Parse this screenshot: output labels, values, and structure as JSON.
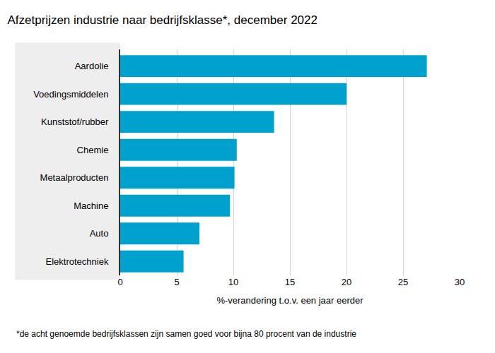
{
  "chart_data": {
    "type": "bar",
    "orientation": "horizontal",
    "title": "Afzetprijzen industrie naar bedrijfsklasse*, december 2022",
    "x_label": "%-verandering t.o.v. een jaar eerder",
    "annotations": [
      "*de acht genoemde bedrijfsklassen zijn samen goed voor bijna 80 procent van de industrie"
    ],
    "categories": [
      "Aardolie",
      "Voedingsmiddelen",
      "Kunststof/rubber",
      "Chemie",
      "Metaalproducten",
      "Machine",
      "Auto",
      "Elektrotechniek"
    ],
    "values": [
      27.1,
      20.0,
      13.6,
      10.3,
      10.1,
      9.7,
      7.0,
      5.6
    ],
    "color": "#00a1cd",
    "xlim": [
      0,
      30
    ],
    "xticks": [
      0,
      5,
      10,
      15,
      20,
      25,
      30
    ],
    "grid": true
  }
}
